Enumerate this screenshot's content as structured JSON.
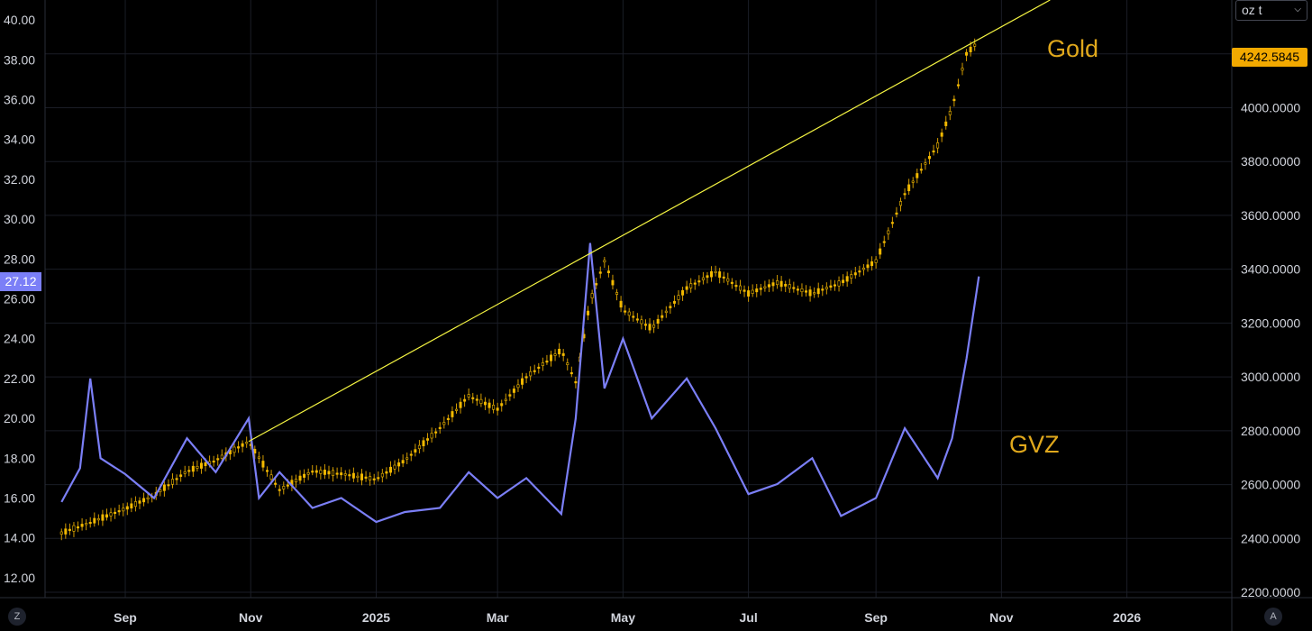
{
  "toolbar": {
    "unit_selector": "oz t",
    "auto_scale": "A",
    "zoom_reset": "Z"
  },
  "labels": {
    "gold": "Gold",
    "gvz": "GVZ"
  },
  "last_values": {
    "gold": "4242.5845",
    "gvz": "27.12"
  },
  "colors": {
    "gold": "#f2b900",
    "gvz": "#7b7ff7",
    "trendline": "#f5f542",
    "annotation": "#e0a81c"
  },
  "chart_data": {
    "type": "line",
    "title": "",
    "xlabel": "",
    "x_ticks": [
      "Sep",
      "Nov",
      "2025",
      "Mar",
      "May",
      "Jul",
      "Sep",
      "Nov",
      "2026"
    ],
    "x_tick_months": [
      "2024-09",
      "2024-11",
      "2025-01",
      "2025-03",
      "2025-05",
      "2025-07",
      "2025-09",
      "2025-11",
      "2026-01"
    ],
    "left_axis": {
      "range": [
        11.0,
        41.0
      ],
      "ticks": [
        "12.00",
        "14.00",
        "16.00",
        "18.00",
        "20.00",
        "22.00",
        "24.00",
        "26.00",
        "28.00",
        "30.00",
        "32.00",
        "34.00",
        "36.00",
        "38.00",
        "40.00"
      ]
    },
    "right_axis": {
      "range": [
        2180,
        4400
      ],
      "ticks": [
        "2200.0000",
        "2400.0000",
        "2600.0000",
        "2800.0000",
        "3000.0000",
        "3200.0000",
        "3400.0000",
        "3600.0000",
        "3800.0000",
        "4000.0000",
        "4200.0000"
      ]
    },
    "series": [
      {
        "name": "Gold",
        "axis": "right",
        "style": "candlestick",
        "x": [
          "2024-08-01",
          "2024-08-15",
          "2024-09-01",
          "2024-09-15",
          "2024-10-01",
          "2024-10-15",
          "2024-10-31",
          "2024-11-05",
          "2024-11-15",
          "2024-12-01",
          "2024-12-15",
          "2025-01-01",
          "2025-01-15",
          "2025-02-01",
          "2025-02-15",
          "2025-03-01",
          "2025-03-15",
          "2025-04-01",
          "2025-04-08",
          "2025-04-15",
          "2025-04-22",
          "2025-05-01",
          "2025-05-15",
          "2025-06-01",
          "2025-06-15",
          "2025-07-01",
          "2025-07-15",
          "2025-08-01",
          "2025-08-15",
          "2025-09-01",
          "2025-09-15",
          "2025-10-01",
          "2025-10-08",
          "2025-10-15",
          "2025-10-20"
        ],
        "values": [
          2420,
          2460,
          2510,
          2560,
          2650,
          2690,
          2760,
          2700,
          2580,
          2650,
          2640,
          2620,
          2690,
          2810,
          2930,
          2880,
          3000,
          3100,
          2980,
          3280,
          3430,
          3250,
          3180,
          3330,
          3390,
          3310,
          3350,
          3310,
          3350,
          3430,
          3680,
          3860,
          4000,
          4200,
          4240
        ]
      },
      {
        "name": "GVZ",
        "axis": "left",
        "style": "line",
        "x": [
          "2024-08-01",
          "2024-08-10",
          "2024-08-15",
          "2024-08-20",
          "2024-09-01",
          "2024-09-15",
          "2024-10-01",
          "2024-10-15",
          "2024-10-31",
          "2024-11-05",
          "2024-11-15",
          "2024-12-01",
          "2024-12-15",
          "2025-01-01",
          "2025-01-15",
          "2025-02-01",
          "2025-02-15",
          "2025-03-01",
          "2025-03-15",
          "2025-04-01",
          "2025-04-08",
          "2025-04-15",
          "2025-04-22",
          "2025-05-01",
          "2025-05-15",
          "2025-06-01",
          "2025-06-15",
          "2025-07-01",
          "2025-07-15",
          "2025-08-01",
          "2025-08-15",
          "2025-09-01",
          "2025-09-15",
          "2025-10-01",
          "2025-10-08",
          "2025-10-15",
          "2025-10-21"
        ],
        "values": [
          15.8,
          17.5,
          22.0,
          18.0,
          17.2,
          16.0,
          19.0,
          17.3,
          20.0,
          16.0,
          17.3,
          15.5,
          16.0,
          14.8,
          15.3,
          15.5,
          17.3,
          16.0,
          17.0,
          15.2,
          20.0,
          28.8,
          21.5,
          24.0,
          20.0,
          22.0,
          19.5,
          16.2,
          16.7,
          18.0,
          15.1,
          16.0,
          19.5,
          17.0,
          19.0,
          23.0,
          27.12
        ]
      }
    ],
    "annotations": [
      {
        "text": "Gold",
        "series": "Gold"
      },
      {
        "text": "GVZ",
        "series": "GVZ"
      }
    ],
    "trendline": {
      "series": "Gold",
      "x": [
        "2024-10-31",
        "2025-04-20",
        "2025-10-20"
      ],
      "values": [
        2760,
        3450,
        4250
      ]
    },
    "grid": true,
    "legend": "none"
  }
}
